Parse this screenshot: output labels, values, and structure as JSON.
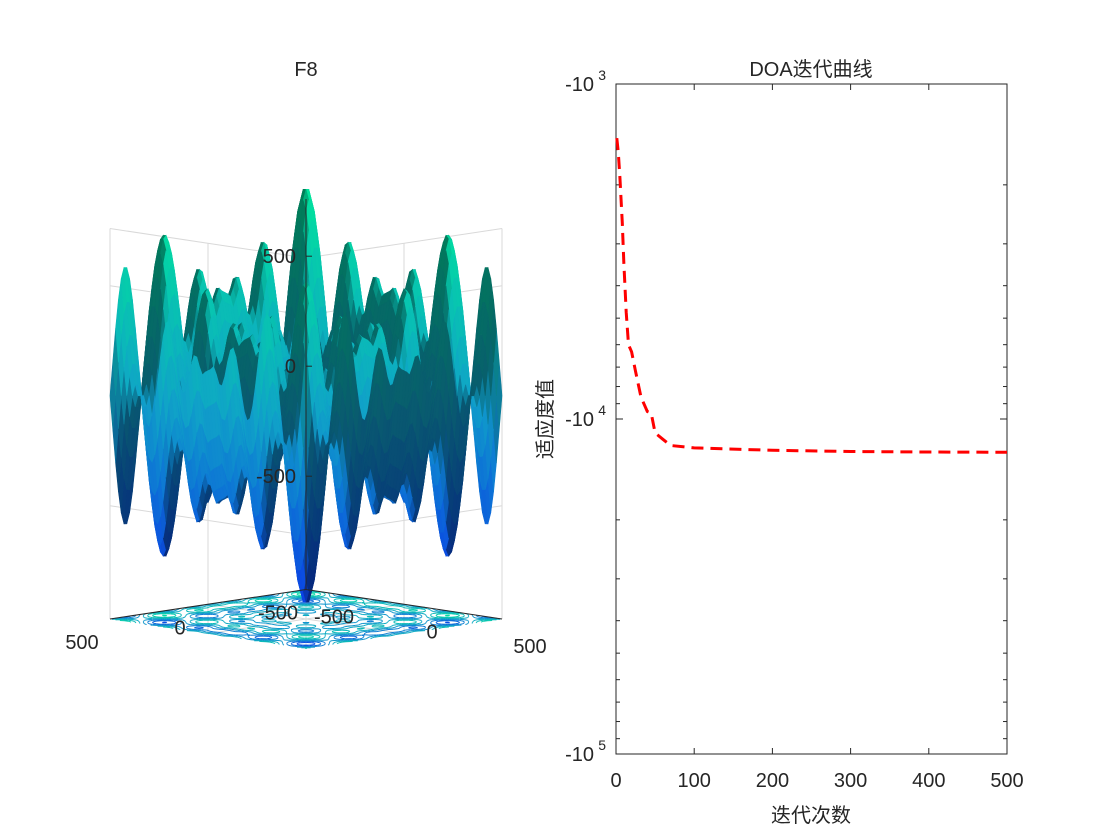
{
  "chart_data": [
    {
      "type": "surface3d",
      "title": "F8",
      "function": "-x*sin(sqrt(|x|)) - y*sin(sqrt(|y|))",
      "x_range": [
        -500,
        500
      ],
      "y_range": [
        -500,
        500
      ],
      "z_ticks": [
        500,
        0,
        -500
      ],
      "z_tick_labels": [
        "500",
        "0",
        "-500"
      ],
      "x_tick_labels": [
        "-500",
        "0",
        "500"
      ],
      "y_tick_labels": [
        "500",
        "0",
        "-500"
      ],
      "colormap": [
        "#0a3ce6",
        "#10a2c8",
        "#00e69a"
      ]
    },
    {
      "type": "line",
      "title": "DOA迭代曲线",
      "xlabel": "迭代次数",
      "ylabel": "适应度值",
      "xlim": [
        0,
        500
      ],
      "x_ticks": [
        0,
        100,
        200,
        300,
        400,
        500
      ],
      "x_tick_labels": [
        "0",
        "100",
        "200",
        "300",
        "400",
        "500"
      ],
      "yscale": "log-negative",
      "ylim": [
        -1000,
        -100000
      ],
      "y_ticks": [
        {
          "value": -1000,
          "base": "-10",
          "exp": "3"
        },
        {
          "value": -10000,
          "base": "-10",
          "exp": "4"
        },
        {
          "value": -100000,
          "base": "-10",
          "exp": "5"
        }
      ],
      "series": [
        {
          "name": "DOA",
          "color": "#ff0000",
          "style": "dashed",
          "x": [
            1,
            3,
            5,
            8,
            10,
            13,
            16,
            20,
            25,
            32,
            40,
            45,
            50,
            60,
            70,
            100,
            150,
            200,
            300,
            400,
            500
          ],
          "y": [
            -1450,
            -1600,
            -1900,
            -2600,
            -3400,
            -4800,
            -6000,
            -6300,
            -7200,
            -8600,
            -9500,
            -9600,
            -11000,
            -11500,
            -12000,
            -12200,
            -12300,
            -12400,
            -12500,
            -12550,
            -12570
          ]
        }
      ]
    }
  ]
}
